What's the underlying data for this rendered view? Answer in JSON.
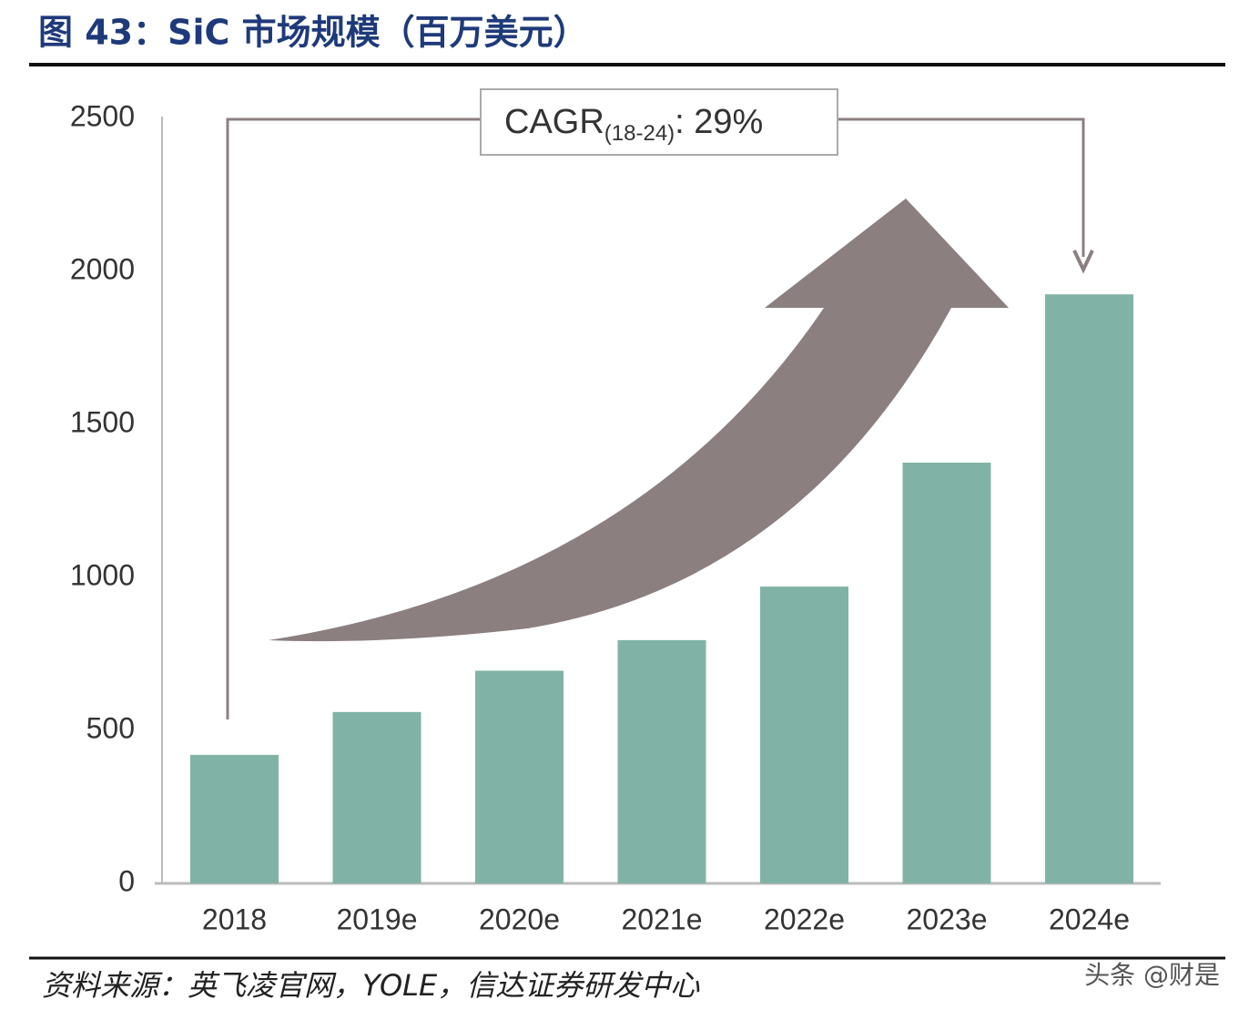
{
  "chart_data": {
    "type": "bar",
    "title": "图 43：SiC 市场规模（百万美元）",
    "categories": [
      "2018",
      "2019e",
      "2020e",
      "2021e",
      "2022e",
      "2023e",
      "2024e"
    ],
    "values": [
      420,
      560,
      695,
      795,
      970,
      1375,
      1925
    ],
    "color": "#80b3a6",
    "ylim": [
      0,
      2500
    ],
    "yticks": [
      0,
      500,
      1000,
      1500,
      2000,
      2500
    ],
    "annotation": {
      "text": "CAGR",
      "subscript": "(18-24)",
      "rest": ": 29%"
    },
    "source": "资料来源：英飞凌官网，YOLE，信达证券研发中心",
    "watermark": "头条 @财是"
  }
}
